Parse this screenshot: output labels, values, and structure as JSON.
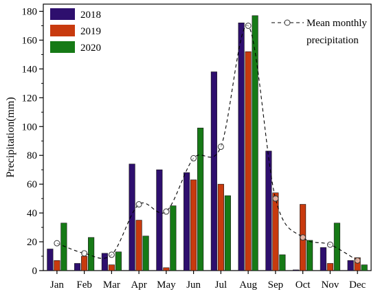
{
  "chart_data": {
    "type": "bar",
    "title": "",
    "xlabel": "",
    "ylabel": "Precipitation(mm)",
    "ylim": [
      0,
      185
    ],
    "yticks": [
      0,
      20,
      40,
      60,
      80,
      100,
      120,
      140,
      160,
      180
    ],
    "categories": [
      "Jan",
      "Feb",
      "Mar",
      "Apr",
      "May",
      "Jun",
      "Jul",
      "Aug",
      "Sep",
      "Oct",
      "Nov",
      "Dec"
    ],
    "series": [
      {
        "name": "2018",
        "color": "#2e0f6e",
        "values": [
          15,
          5,
          12,
          74,
          70,
          68,
          138,
          172,
          83,
          0.5,
          16,
          7
        ]
      },
      {
        "name": "2019",
        "color": "#c83a0e",
        "values": [
          7,
          10,
          4,
          35,
          2,
          63,
          60,
          152,
          54,
          46,
          5,
          9
        ]
      },
      {
        "name": "2020",
        "color": "#167a16",
        "values": [
          33,
          23,
          13,
          24,
          45,
          99,
          52,
          177,
          11,
          21,
          33,
          4
        ]
      }
    ],
    "line_series": {
      "name": "Mean monthly precipitation",
      "name_lines": [
        "Mean monthly",
        "precipitation"
      ],
      "type": "dashed-line-with-circle-markers",
      "color": "#000000",
      "values": [
        19,
        12,
        11,
        46,
        41,
        78,
        86,
        170,
        50,
        23,
        18,
        7
      ]
    },
    "grid": false,
    "legend": "top-left for bars; top-right for mean line"
  }
}
